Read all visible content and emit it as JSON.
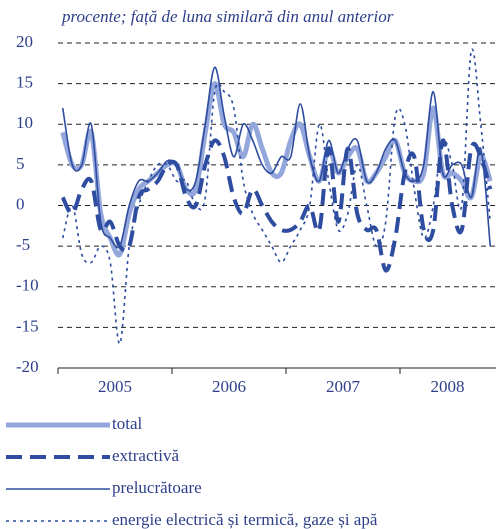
{
  "chart_data": {
    "type": "line",
    "title": "procente; față de luna similară din anul anterior",
    "categories": [
      null,
      null,
      null,
      null,
      null,
      null,
      "2005",
      null,
      null,
      null,
      null,
      null,
      null,
      null,
      null,
      null,
      null,
      null,
      "2006",
      null,
      null,
      null,
      null,
      null,
      null,
      null,
      null,
      null,
      null,
      null,
      "2007",
      null,
      null,
      null,
      null,
      null,
      null,
      null,
      null,
      null,
      null,
      "2008",
      null,
      null,
      null,
      null
    ],
    "series": [
      {
        "name": "total",
        "color": "#93a7dc",
        "style": "thick",
        "values": [
          9,
          5,
          5,
          9,
          -1,
          -4,
          -6,
          -1,
          2,
          3,
          4,
          5,
          5,
          2,
          2,
          9,
          15,
          10,
          9,
          6,
          10,
          7,
          4,
          4,
          8,
          10,
          6,
          3,
          7,
          4,
          6,
          7,
          3,
          4,
          6,
          8,
          4,
          3,
          4,
          12,
          4,
          4,
          3,
          1,
          6,
          3
        ]
      },
      {
        "name": "extractivă",
        "color": "#2e4da0",
        "style": "dashed",
        "values": [
          1,
          -1,
          2,
          3,
          -3,
          -2,
          -5,
          -5,
          1,
          2,
          3,
          5,
          5,
          1,
          0,
          5,
          8,
          6,
          1,
          -1,
          2,
          0,
          -2,
          -3,
          -3,
          -2,
          0,
          -3,
          7,
          -2,
          7,
          -1,
          -3,
          -3,
          -8,
          -4,
          4,
          6,
          -3,
          -3,
          8,
          0,
          -3,
          7,
          6,
          2
        ]
      },
      {
        "name": "prelucrătoare",
        "color": "#2e4da0",
        "style": "solid",
        "values": [
          12,
          5,
          5,
          10,
          -2,
          -4,
          -5,
          0,
          3,
          3,
          4,
          5.5,
          5,
          2,
          3,
          10,
          17,
          11,
          6,
          10,
          8,
          5,
          4,
          6,
          6,
          12.5,
          6,
          3,
          8,
          4,
          7,
          8,
          3,
          4,
          7,
          8,
          4,
          3,
          5,
          14,
          4,
          5,
          5,
          1,
          7,
          -5
        ]
      },
      {
        "name": "energie electrică și termică, gaze și apă",
        "color": "#2e4da0",
        "style": "dotted",
        "values": [
          -4,
          0,
          -6,
          -7,
          -5,
          -7,
          -17,
          -5,
          0,
          3,
          5,
          5,
          3,
          3,
          0,
          1,
          14,
          14,
          12,
          3,
          -1,
          -3,
          -5,
          -7,
          -5,
          -3,
          0,
          10,
          3,
          -3,
          -1,
          5,
          0,
          -5,
          -2,
          11,
          10,
          2,
          -4,
          0,
          8,
          5,
          0,
          19,
          10,
          -2
        ]
      }
    ],
    "ylim": [
      -20,
      20
    ],
    "yticks": [
      -20,
      -15,
      -10,
      -5,
      0,
      5,
      10,
      15,
      20
    ],
    "grid": true
  }
}
